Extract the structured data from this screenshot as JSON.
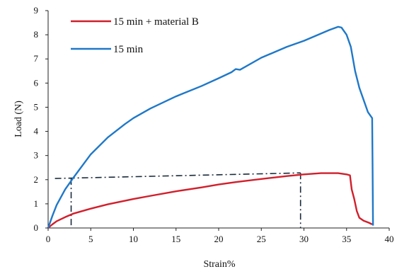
{
  "chart_data": {
    "type": "line",
    "xlabel": "Strain%",
    "ylabel": "Load (N)",
    "xlim": [
      0,
      40
    ],
    "ylim": [
      0,
      9
    ],
    "xticks": [
      "0",
      "5",
      "10",
      "15",
      "20",
      "25",
      "30",
      "35",
      "40"
    ],
    "yticks": [
      "0",
      "1",
      "2",
      "3",
      "4",
      "5",
      "6",
      "7",
      "8",
      "9"
    ],
    "grid": false,
    "legend_position": "top-left",
    "series": [
      {
        "name": "15 min + material B",
        "color": "#d11f2b",
        "points": [
          [
            0,
            0
          ],
          [
            0.5,
            0.15
          ],
          [
            1,
            0.28
          ],
          [
            2,
            0.45
          ],
          [
            3,
            0.6
          ],
          [
            5,
            0.8
          ],
          [
            7,
            0.98
          ],
          [
            10,
            1.2
          ],
          [
            12,
            1.33
          ],
          [
            15,
            1.52
          ],
          [
            18,
            1.68
          ],
          [
            20,
            1.8
          ],
          [
            22,
            1.9
          ],
          [
            25,
            2.03
          ],
          [
            28,
            2.15
          ],
          [
            30,
            2.22
          ],
          [
            32,
            2.27
          ],
          [
            34,
            2.27
          ],
          [
            35,
            2.22
          ],
          [
            35.4,
            2.18
          ],
          [
            35.6,
            1.6
          ],
          [
            35.9,
            1.2
          ],
          [
            36.2,
            0.7
          ],
          [
            36.5,
            0.42
          ],
          [
            37,
            0.3
          ],
          [
            37.6,
            0.22
          ],
          [
            38,
            0.15
          ]
        ]
      },
      {
        "name": "15 min",
        "color": "#1f78c8",
        "points": [
          [
            0,
            0
          ],
          [
            0.5,
            0.5
          ],
          [
            1,
            0.95
          ],
          [
            2,
            1.6
          ],
          [
            3,
            2.1
          ],
          [
            5,
            3.05
          ],
          [
            7,
            3.75
          ],
          [
            9,
            4.3
          ],
          [
            10,
            4.55
          ],
          [
            12,
            4.95
          ],
          [
            15,
            5.45
          ],
          [
            18,
            5.88
          ],
          [
            20,
            6.2
          ],
          [
            21.5,
            6.45
          ],
          [
            22,
            6.58
          ],
          [
            22.5,
            6.55
          ],
          [
            25,
            7.05
          ],
          [
            28,
            7.5
          ],
          [
            30,
            7.75
          ],
          [
            32,
            8.05
          ],
          [
            33,
            8.2
          ],
          [
            34,
            8.33
          ],
          [
            34.4,
            8.3
          ],
          [
            35,
            8.0
          ],
          [
            35.5,
            7.5
          ],
          [
            36,
            6.5
          ],
          [
            36.5,
            5.8
          ],
          [
            37,
            5.3
          ],
          [
            37.5,
            4.8
          ],
          [
            38,
            4.55
          ],
          [
            38.05,
            2.5
          ],
          [
            38.1,
            0.1
          ]
        ]
      }
    ],
    "reference_lines": [
      {
        "style": "dash-dot",
        "points": [
          [
            0.8,
            2.05
          ],
          [
            29.6,
            2.28
          ]
        ]
      },
      {
        "style": "dash-dot",
        "points": [
          [
            2.7,
            2.05
          ],
          [
            2.7,
            0
          ]
        ]
      },
      {
        "style": "dash-dot",
        "points": [
          [
            29.6,
            2.28
          ],
          [
            29.6,
            0
          ]
        ]
      }
    ]
  }
}
